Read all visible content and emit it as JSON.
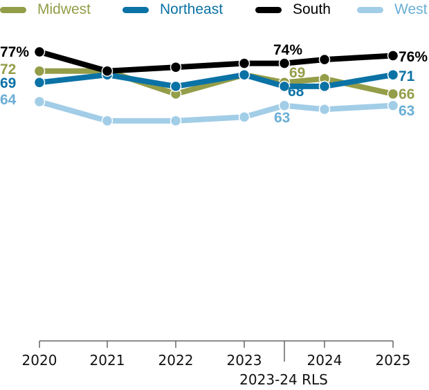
{
  "chart_data": {
    "type": "line",
    "title": "",
    "xlabel": "",
    "ylabel": "",
    "grid": false,
    "legend_position": "top",
    "x": [
      "2020",
      "2021",
      "2022",
      "2023",
      "2023-24 RLS",
      "2024",
      "2025"
    ],
    "tick_labels": [
      "2020",
      "2021",
      "2022",
      "2023",
      "2024",
      "2025"
    ],
    "axis_annotation": "2023-24 RLS",
    "ylim": [
      0,
      80
    ],
    "series": [
      {
        "name": "Midwest",
        "color": "#949d48",
        "values": [
          72,
          72,
          66,
          71,
          69,
          70,
          66
        ],
        "labels": [
          {
            "index": 0,
            "text": "72"
          },
          {
            "index": 4,
            "text": "69"
          },
          {
            "index": 6,
            "text": "66"
          }
        ]
      },
      {
        "name": "Northeast",
        "color": "#0b72a5",
        "values": [
          69,
          71,
          68,
          71,
          68,
          68,
          71
        ],
        "labels": [
          {
            "index": 0,
            "text": "69"
          },
          {
            "index": 4,
            "text": "68"
          },
          {
            "index": 6,
            "text": "71"
          }
        ]
      },
      {
        "name": "South",
        "color": "#000000",
        "values": [
          77,
          72,
          73,
          74,
          74,
          75,
          76
        ],
        "labels": [
          {
            "index": 0,
            "text": "77%"
          },
          {
            "index": 4,
            "text": "74%"
          },
          {
            "index": 6,
            "text": "76%"
          }
        ]
      },
      {
        "name": "West",
        "color": "#a2cde7",
        "label_color": "#6aaed6",
        "values": [
          64,
          59,
          59,
          60,
          63,
          62,
          63
        ],
        "labels": [
          {
            "index": 0,
            "text": "64"
          },
          {
            "index": 4,
            "text": "63"
          },
          {
            "index": 6,
            "text": "63"
          }
        ]
      }
    ]
  }
}
